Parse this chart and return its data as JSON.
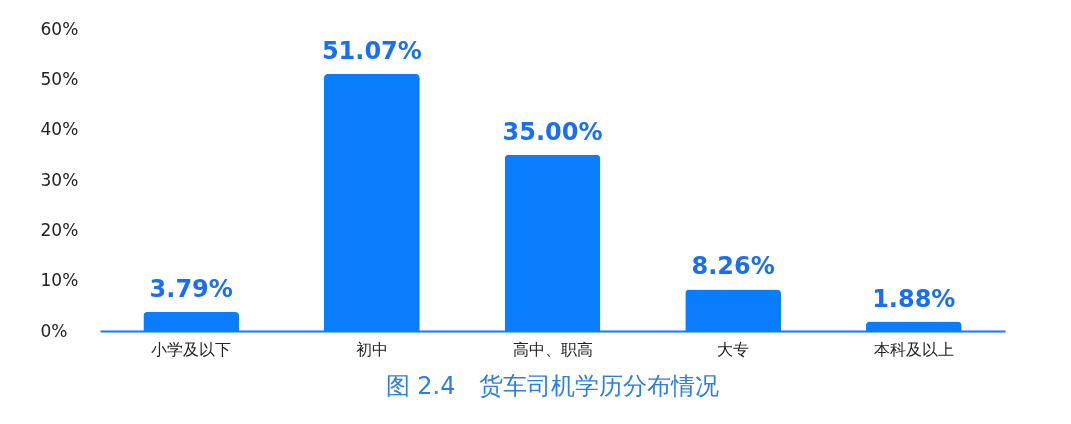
{
  "chart_data": {
    "type": "bar",
    "title": "图 2.4　货车司机学历分布情况",
    "categories": [
      "小学及以下",
      "初中",
      "高中、职高",
      "大专",
      "本科及以上"
    ],
    "values": [
      3.79,
      51.07,
      35.0,
      8.26,
      1.88
    ],
    "value_labels": [
      "3.79%",
      "51.07%",
      "35.00%",
      "8.26%",
      "1.88%"
    ],
    "color": "#0a7dfc",
    "ylim": [
      0,
      60
    ],
    "yticks": [
      {
        "value": 0,
        "label": "0%"
      },
      {
        "value": 10,
        "label": "10%"
      },
      {
        "value": 20,
        "label": "20%"
      },
      {
        "value": 30,
        "label": "30%"
      },
      {
        "value": 40,
        "label": "40%"
      },
      {
        "value": 50,
        "label": "50%"
      },
      {
        "value": 60,
        "label": "60%"
      }
    ],
    "grid": false
  }
}
